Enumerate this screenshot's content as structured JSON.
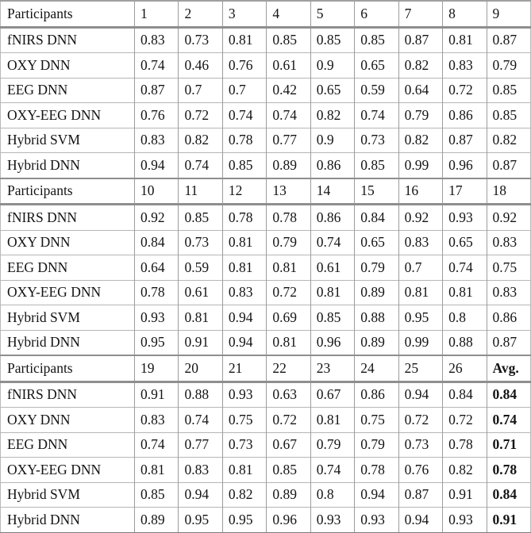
{
  "table": {
    "row_label_header": "Participants",
    "sections": [
      {
        "columns": [
          "1",
          "2",
          "3",
          "4",
          "5",
          "6",
          "7",
          "8",
          "9"
        ],
        "rows": [
          {
            "label": "fNIRS DNN",
            "values": [
              "0.83",
              "0.73",
              "0.81",
              "0.85",
              "0.85",
              "0.85",
              "0.87",
              "0.81",
              "0.87"
            ]
          },
          {
            "label": "OXY DNN",
            "values": [
              "0.74",
              "0.46",
              "0.76",
              "0.61",
              "0.9",
              "0.65",
              "0.82",
              "0.83",
              "0.79"
            ]
          },
          {
            "label": "EEG DNN",
            "values": [
              "0.87",
              "0.7",
              "0.7",
              "0.42",
              "0.65",
              "0.59",
              "0.64",
              "0.72",
              "0.85"
            ]
          },
          {
            "label": "OXY-EEG DNN",
            "values": [
              "0.76",
              "0.72",
              "0.74",
              "0.74",
              "0.82",
              "0.74",
              "0.79",
              "0.86",
              "0.85"
            ]
          },
          {
            "label": "Hybrid SVM",
            "values": [
              "0.83",
              "0.82",
              "0.78",
              "0.77",
              "0.9",
              "0.73",
              "0.82",
              "0.87",
              "0.82"
            ]
          },
          {
            "label": "Hybrid DNN",
            "values": [
              "0.94",
              "0.74",
              "0.85",
              "0.89",
              "0.86",
              "0.85",
              "0.99",
              "0.96",
              "0.87"
            ]
          }
        ]
      },
      {
        "columns": [
          "10",
          "11",
          "12",
          "13",
          "14",
          "15",
          "16",
          "17",
          "18"
        ],
        "rows": [
          {
            "label": "fNIRS DNN",
            "values": [
              "0.92",
              "0.85",
              "0.78",
              "0.78",
              "0.86",
              "0.84",
              "0.92",
              "0.93",
              "0.92"
            ]
          },
          {
            "label": "OXY DNN",
            "values": [
              "0.84",
              "0.73",
              "0.81",
              "0.79",
              "0.74",
              "0.65",
              "0.83",
              "0.65",
              "0.83"
            ]
          },
          {
            "label": "EEG DNN",
            "values": [
              "0.64",
              "0.59",
              "0.81",
              "0.81",
              "0.61",
              "0.79",
              "0.7",
              "0.74",
              "0.75"
            ]
          },
          {
            "label": "OXY-EEG DNN",
            "values": [
              "0.78",
              "0.61",
              "0.83",
              "0.72",
              "0.81",
              "0.89",
              "0.81",
              "0.81",
              "0.83"
            ]
          },
          {
            "label": "Hybrid SVM",
            "values": [
              "0.93",
              "0.81",
              "0.94",
              "0.69",
              "0.85",
              "0.88",
              "0.95",
              "0.8",
              "0.86"
            ]
          },
          {
            "label": "Hybrid DNN",
            "values": [
              "0.95",
              "0.91",
              "0.94",
              "0.81",
              "0.96",
              "0.89",
              "0.99",
              "0.88",
              "0.87"
            ]
          }
        ]
      },
      {
        "columns": [
          "19",
          "20",
          "21",
          "22",
          "23",
          "24",
          "25",
          "26",
          "Avg."
        ],
        "rows": [
          {
            "label": "fNIRS DNN",
            "values": [
              "0.91",
              "0.88",
              "0.93",
              "0.63",
              "0.67",
              "0.86",
              "0.94",
              "0.84",
              "0.84"
            ]
          },
          {
            "label": "OXY DNN",
            "values": [
              "0.83",
              "0.74",
              "0.75",
              "0.72",
              "0.81",
              "0.75",
              "0.72",
              "0.72",
              "0.74"
            ]
          },
          {
            "label": "EEG DNN",
            "values": [
              "0.74",
              "0.77",
              "0.73",
              "0.67",
              "0.79",
              "0.79",
              "0.73",
              "0.78",
              "0.71"
            ]
          },
          {
            "label": "OXY-EEG DNN",
            "values": [
              "0.81",
              "0.83",
              "0.81",
              "0.85",
              "0.74",
              "0.78",
              "0.76",
              "0.82",
              "0.78"
            ]
          },
          {
            "label": "Hybrid SVM",
            "values": [
              "0.85",
              "0.94",
              "0.82",
              "0.89",
              "0.8",
              "0.94",
              "0.87",
              "0.91",
              "0.84"
            ]
          },
          {
            "label": "Hybrid DNN",
            "values": [
              "0.89",
              "0.95",
              "0.95",
              "0.96",
              "0.93",
              "0.93",
              "0.94",
              "0.93",
              "0.91"
            ]
          }
        ]
      }
    ],
    "line_color": "#8e8e8e",
    "text_color": "#141414",
    "background_color": "#ffffff"
  }
}
